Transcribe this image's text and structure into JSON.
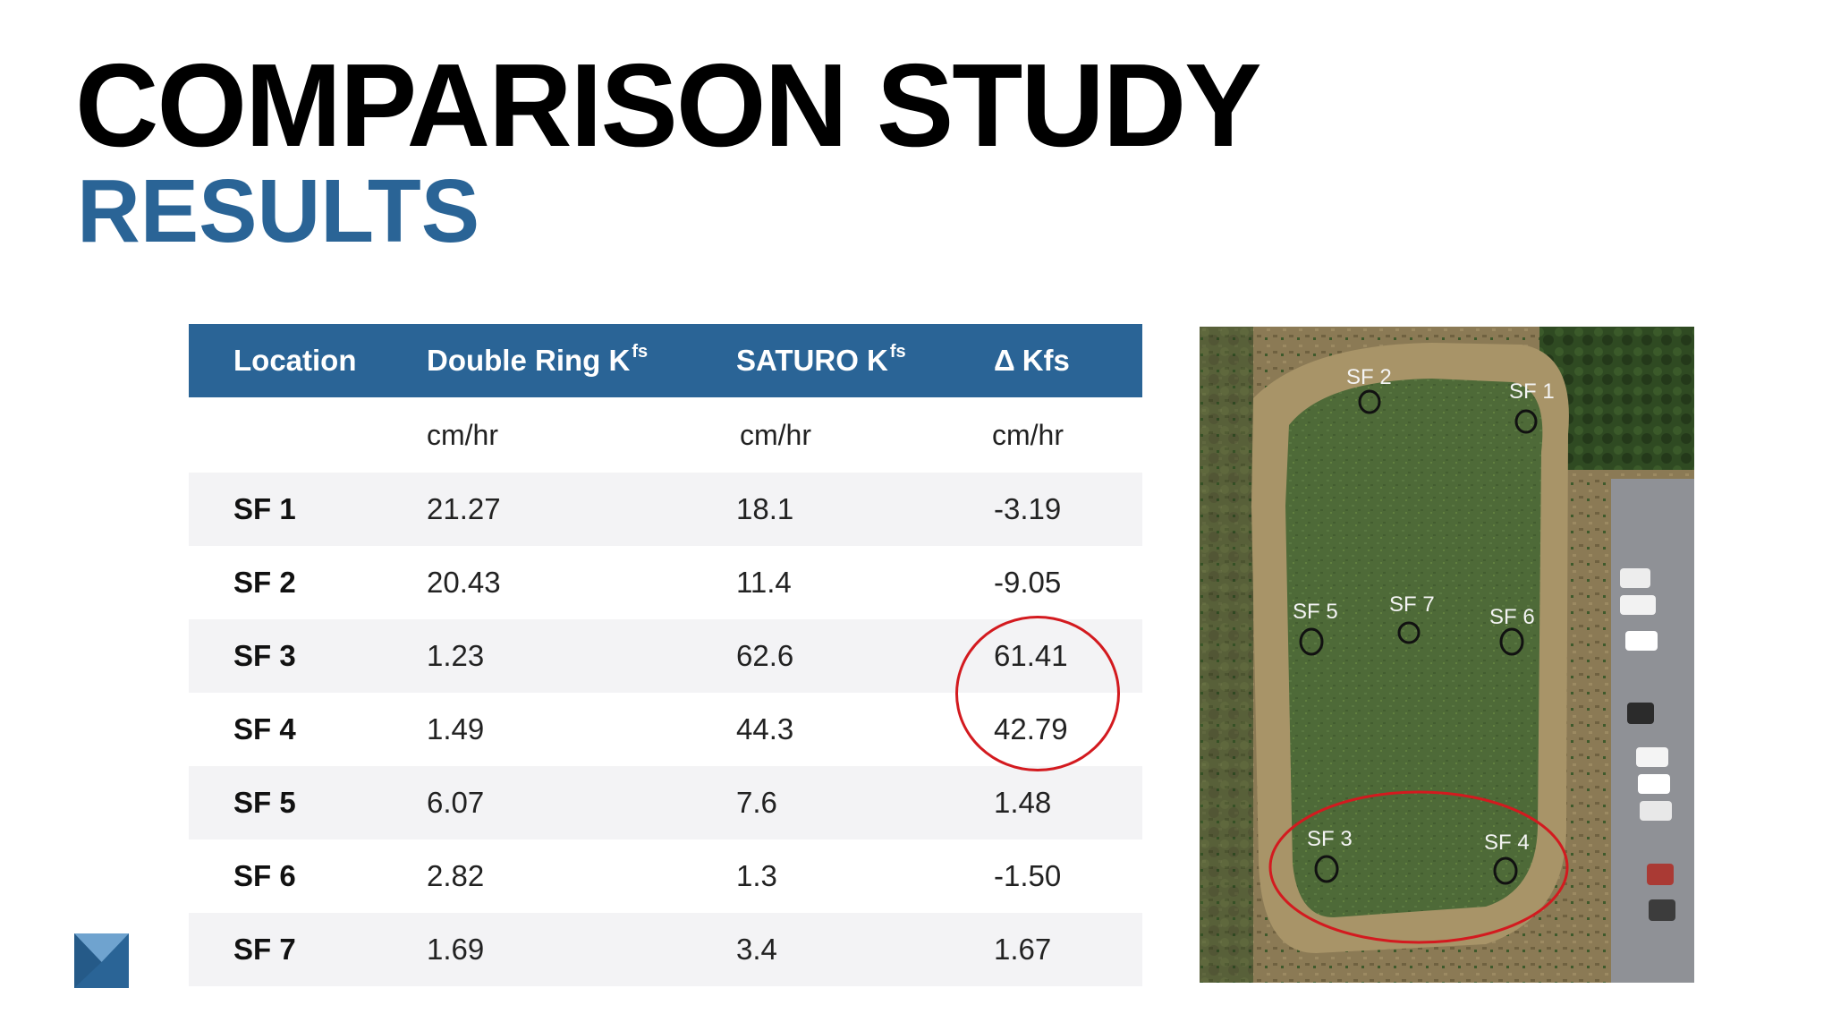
{
  "title": "COMPARISON STUDY",
  "subtitle": "RESULTS",
  "colors": {
    "accent": "#2a6496",
    "header_bg": "#2a6496",
    "highlight": "#d31a1f"
  },
  "table": {
    "headers": {
      "location": "Location",
      "double_ring": "Double Ring K",
      "double_ring_sub": "fs",
      "saturo": "SATURO K",
      "saturo_sub": "fs",
      "delta_symbol": "Δ",
      "delta": "Kfs"
    },
    "units": {
      "double_ring": "cm/hr",
      "saturo": "cm/hr",
      "delta": "cm/hr"
    },
    "rows": [
      {
        "location": "SF 1",
        "double_ring": "21.27",
        "saturo": "18.1",
        "delta": "-3.19"
      },
      {
        "location": "SF 2",
        "double_ring": "20.43",
        "saturo": "11.4",
        "delta": "-9.05"
      },
      {
        "location": "SF 3",
        "double_ring": "1.23",
        "saturo": "62.6",
        "delta": "61.41"
      },
      {
        "location": "SF 4",
        "double_ring": "1.49",
        "saturo": "44.3",
        "delta": "42.79"
      },
      {
        "location": "SF 5",
        "double_ring": "6.07",
        "saturo": "7.6",
        "delta": "1.48"
      },
      {
        "location": "SF 6",
        "double_ring": "2.82",
        "saturo": "1.3",
        "delta": "-1.50"
      },
      {
        "location": "SF 7",
        "double_ring": "1.69",
        "saturo": "3.4",
        "delta": "1.67"
      }
    ]
  },
  "map": {
    "labels": {
      "sf1": "SF 1",
      "sf2": "SF 2",
      "sf3": "SF 3",
      "sf4": "SF 4",
      "sf5": "SF 5",
      "sf6": "SF 6",
      "sf7": "SF 7"
    }
  }
}
